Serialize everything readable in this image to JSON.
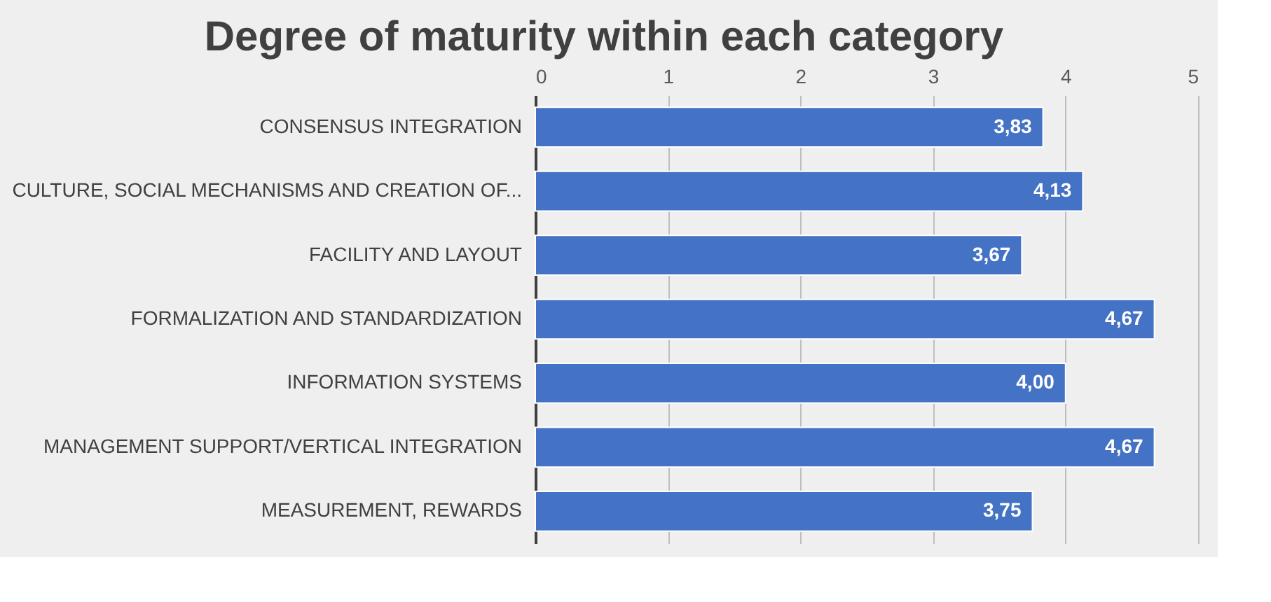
{
  "chart_data": {
    "type": "bar",
    "orientation": "horizontal",
    "title": "Degree of maturity within each category",
    "categories": [
      "CONSENSUS INTEGRATION",
      "CULTURE, SOCIAL MECHANISMS AND CREATION OF...",
      "FACILITY AND LAYOUT",
      "FORMALIZATION AND STANDARDIZATION",
      "INFORMATION SYSTEMS",
      "MANAGEMENT SUPPORT/VERTICAL INTEGRATION",
      "MEASUREMENT, REWARDS"
    ],
    "values": [
      3.83,
      4.13,
      3.67,
      4.67,
      4.0,
      4.67,
      3.75
    ],
    "value_labels": [
      "3,83",
      "4,13",
      "3,67",
      "4,67",
      "4,00",
      "4,67",
      "3,75"
    ],
    "color": "#4472c4",
    "xlim": [
      0,
      5
    ],
    "xticks": [
      0,
      1,
      2,
      3,
      4,
      5
    ],
    "grid": "x"
  }
}
